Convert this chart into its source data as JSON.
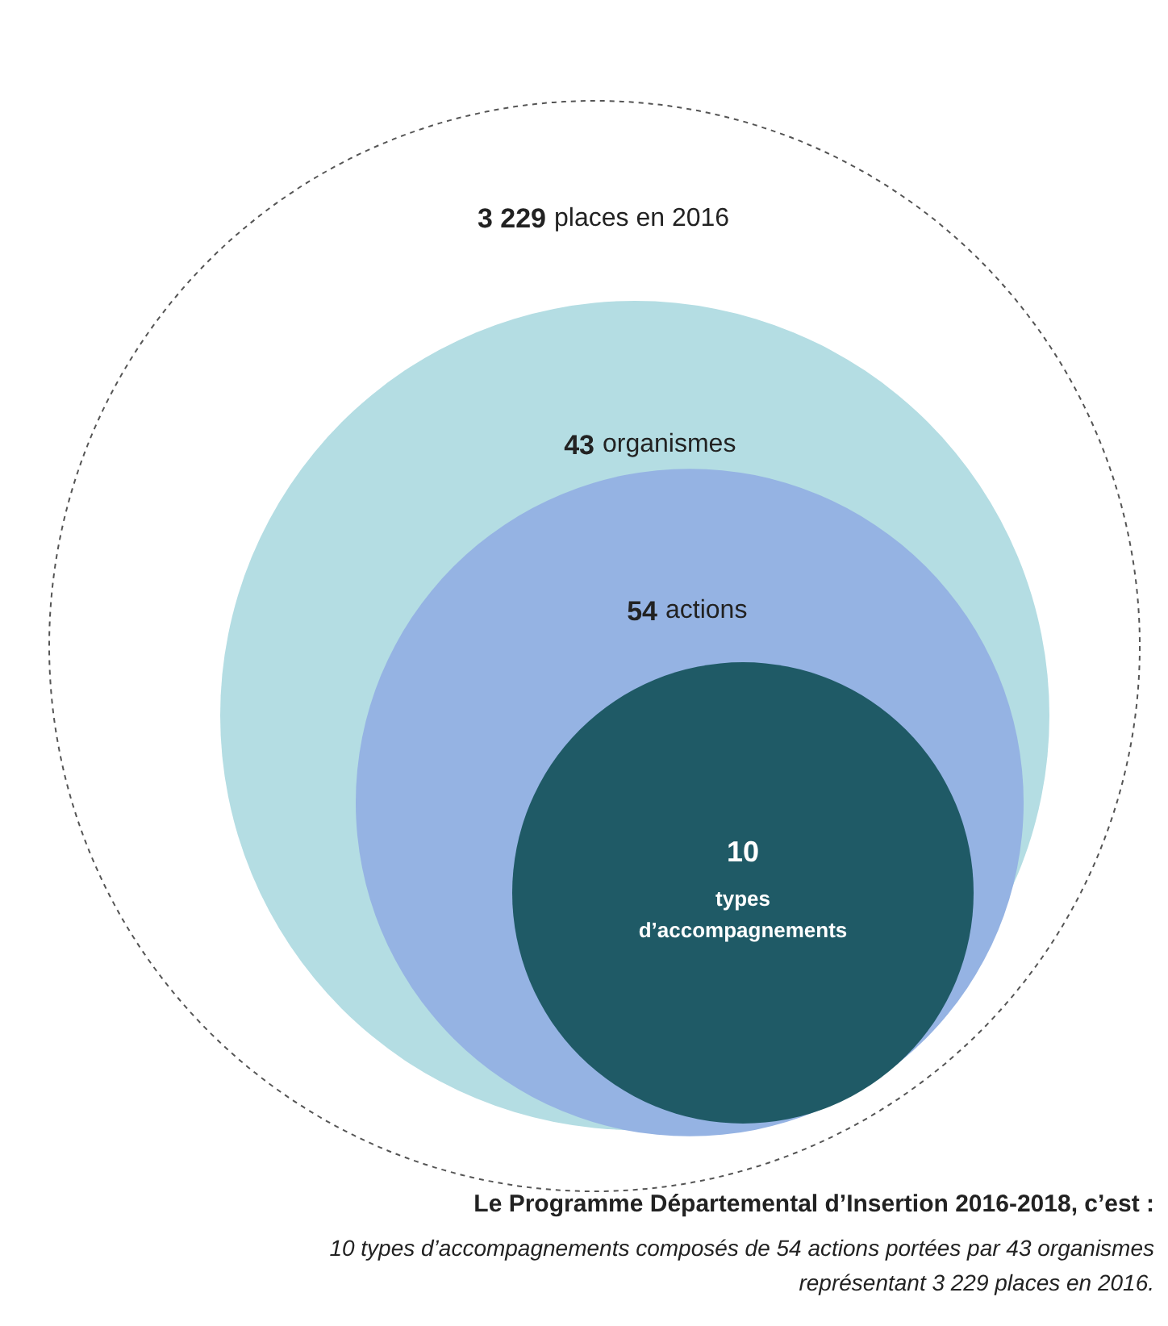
{
  "chart_data": {
    "type": "other",
    "title": "Le Programme Départemental d’Insertion 2016-2018, c’est :",
    "categories": [
      "places en 2016",
      "organismes",
      "actions",
      "types d’accompagnements"
    ],
    "values": [
      3229,
      43,
      54,
      10
    ],
    "value_labels": [
      "3 229",
      "43",
      "54",
      "10"
    ],
    "colors": [
      "#ffffff",
      "#b4dde3",
      "#95b3e3",
      "#1f5a66"
    ],
    "annotations": [
      "10 types d’accompagnements composés de 54 actions portées par 43 organismes\nreprésentant 3 229 places en 2016."
    ]
  }
}
